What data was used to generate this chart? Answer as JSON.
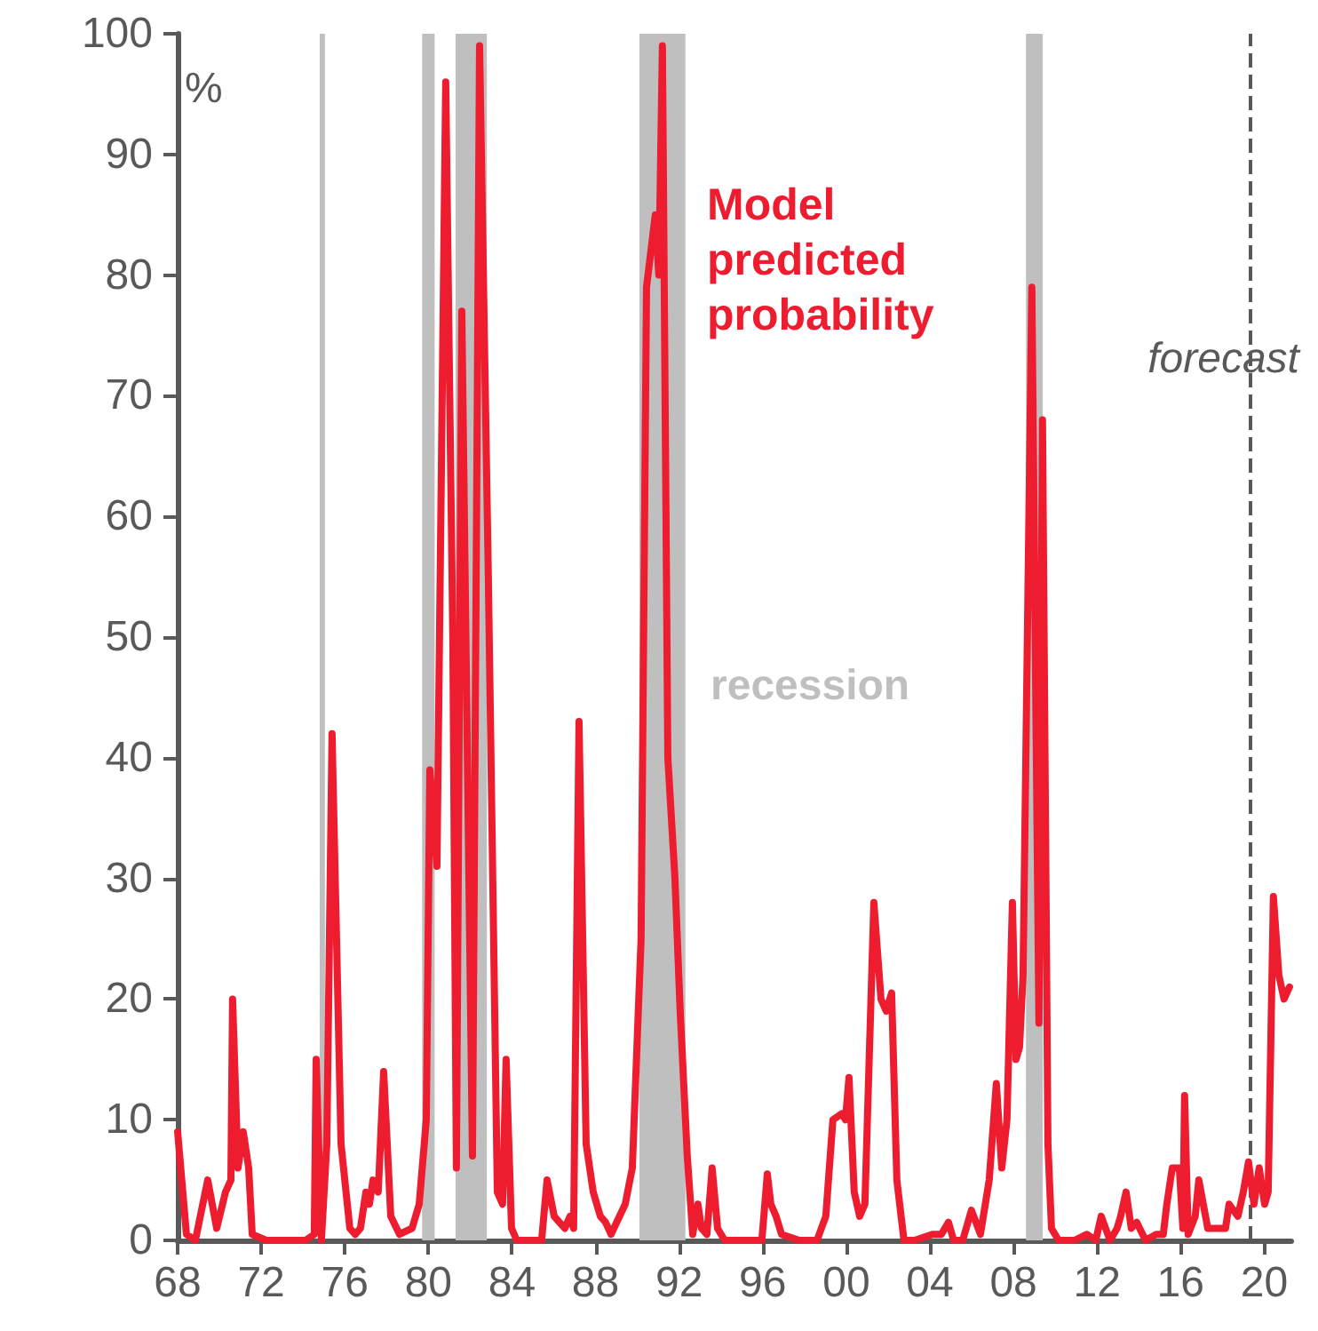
{
  "chart_data": {
    "type": "line",
    "ylabel": "%",
    "annotations": [
      "recession"
    ],
    "xlim": [
      1968,
      2021.3
    ],
    "ylim": [
      0,
      100
    ],
    "xticks": [
      {
        "value": 1968,
        "label": "68"
      },
      {
        "value": 1972,
        "label": "72"
      },
      {
        "value": 1976,
        "label": "76"
      },
      {
        "value": 1980,
        "label": "80"
      },
      {
        "value": 1984,
        "label": "84"
      },
      {
        "value": 1988,
        "label": "88"
      },
      {
        "value": 1992,
        "label": "92"
      },
      {
        "value": 1996,
        "label": "96"
      },
      {
        "value": 2000,
        "label": "00"
      },
      {
        "value": 2004,
        "label": "04"
      },
      {
        "value": 2008,
        "label": "08"
      },
      {
        "value": 2012,
        "label": "12"
      },
      {
        "value": 2016,
        "label": "16"
      },
      {
        "value": 2020,
        "label": "20"
      }
    ],
    "yticks": [
      0,
      10,
      20,
      30,
      40,
      50,
      60,
      70,
      80,
      90,
      100
    ],
    "grid": false,
    "marker": "none",
    "line_style": "solid",
    "series": [
      {
        "name": "Model predicted probability",
        "color": "#ed1c2e",
        "x": [
          1968.0,
          1968.42,
          1968.85,
          1969.44,
          1969.87,
          1970.29,
          1970.55,
          1970.63,
          1970.89,
          1971.14,
          1971.4,
          1971.57,
          1972.25,
          1973.1,
          1974.12,
          1974.54,
          1974.63,
          1974.88,
          1975.14,
          1975.39,
          1975.82,
          1976.24,
          1976.5,
          1976.75,
          1977.01,
          1977.18,
          1977.35,
          1977.6,
          1977.86,
          1978.2,
          1978.62,
          1979.22,
          1979.56,
          1979.9,
          1980.07,
          1980.41,
          1980.83,
          1981.17,
          1981.34,
          1981.6,
          1981.94,
          1982.11,
          1982.45,
          1982.87,
          1983.3,
          1983.55,
          1983.72,
          1983.98,
          1984.23,
          1985.0,
          1985.42,
          1985.68,
          1986.02,
          1986.27,
          1986.53,
          1986.78,
          1986.95,
          1987.21,
          1987.55,
          1987.89,
          1988.23,
          1988.48,
          1988.74,
          1989.42,
          1989.76,
          1990.18,
          1990.44,
          1990.86,
          1991.03,
          1991.2,
          1991.46,
          1991.8,
          1992.05,
          1992.39,
          1992.65,
          1992.9,
          1993.07,
          1993.33,
          1993.58,
          1993.84,
          1994.18,
          1995.2,
          1995.96,
          1996.22,
          1996.39,
          1996.64,
          1996.9,
          1997.75,
          1998.6,
          1999.02,
          1999.36,
          1999.79,
          1999.96,
          2000.13,
          2000.38,
          2000.64,
          2000.89,
          2001.32,
          2001.66,
          2001.91,
          2002.17,
          2002.42,
          2002.76,
          2003.27,
          2004.12,
          2004.55,
          2004.89,
          2005.14,
          2005.57,
          2005.99,
          2006.42,
          2006.84,
          2007.18,
          2007.44,
          2007.69,
          2007.95,
          2008.12,
          2008.29,
          2008.46,
          2008.88,
          2009.22,
          2009.39,
          2009.65,
          2009.82,
          2010.16,
          2010.92,
          2011.52,
          2011.94,
          2012.2,
          2012.62,
          2012.96,
          2013.13,
          2013.39,
          2013.64,
          2013.9,
          2014.32,
          2014.83,
          2015.17,
          2015.34,
          2015.6,
          2015.94,
          2016.11,
          2016.19,
          2016.36,
          2016.7,
          2016.87,
          2017.3,
          2017.64,
          2018.15,
          2018.32,
          2018.74,
          2019.0,
          2019.25,
          2019.51,
          2019.76,
          2020.02,
          2020.19,
          2020.44,
          2020.7,
          2020.95,
          2021.21
        ],
        "values": [
          9,
          0.5,
          0,
          5,
          1,
          4,
          5,
          20,
          6,
          9,
          6,
          0.5,
          0,
          0,
          0,
          0.5,
          15,
          0,
          8,
          42,
          8,
          1,
          0.5,
          1,
          4,
          3,
          5,
          4,
          14,
          2,
          0.5,
          1,
          3,
          10,
          39,
          31,
          96,
          50,
          6,
          77,
          30,
          7,
          99,
          55,
          4,
          3,
          15,
          1,
          0,
          0,
          0,
          5,
          2,
          1.5,
          1,
          2,
          1,
          43,
          8,
          4,
          2,
          1.5,
          0.5,
          3,
          6,
          25,
          79,
          85,
          80,
          99,
          40,
          30,
          19,
          7,
          0.5,
          3,
          1,
          0.5,
          6,
          1,
          0,
          0,
          0,
          5.5,
          3,
          2,
          0.5,
          0,
          0,
          2,
          10,
          10.5,
          10,
          13.5,
          4,
          2,
          3,
          28,
          20,
          19,
          20.5,
          5,
          0,
          0,
          0.5,
          0.5,
          1.5,
          0,
          0,
          2.5,
          0.5,
          5,
          13,
          6,
          10,
          28,
          15,
          16,
          22,
          79,
          18,
          68,
          8,
          1,
          0,
          0,
          0.5,
          0,
          2,
          0,
          1,
          2,
          4,
          1,
          1.5,
          0,
          0.5,
          0.5,
          3,
          6,
          6,
          1,
          12,
          0.5,
          2,
          5,
          1,
          1,
          1,
          3,
          2,
          4,
          6.5,
          3,
          6,
          3,
          4,
          28.5,
          22,
          20,
          21
        ]
      }
    ],
    "bands": [
      {
        "axis": "x",
        "from": 1974.8,
        "to": 1975.05,
        "color": "#bfbfbf"
      },
      {
        "axis": "x",
        "from": 1979.7,
        "to": 1980.3,
        "color": "#bfbfbf"
      },
      {
        "axis": "x",
        "from": 1981.3,
        "to": 1982.8,
        "color": "#bfbfbf"
      },
      {
        "axis": "x",
        "from": 1990.1,
        "to": 1992.3,
        "color": "#bfbfbf"
      },
      {
        "axis": "x",
        "from": 2008.6,
        "to": 2009.4,
        "color": "#bfbfbf"
      }
    ],
    "ref_lines": [
      {
        "axis": "x",
        "value": 2019.3,
        "label": "forecast",
        "line_style": "dashed",
        "color": "#595959"
      }
    ]
  }
}
